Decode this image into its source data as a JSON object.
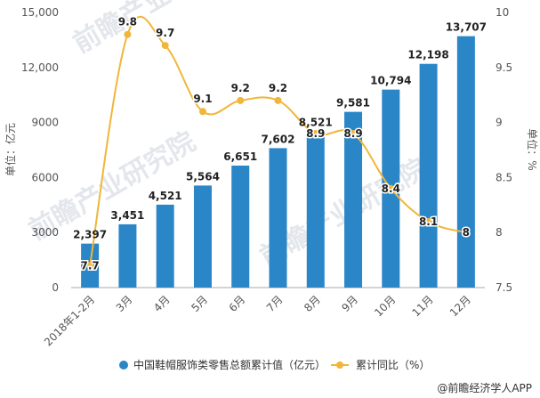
{
  "chart_data": {
    "type": "bar",
    "categories": [
      "2018年1-2月",
      "3月",
      "4月",
      "5月",
      "6月",
      "7月",
      "8月",
      "9月",
      "10月",
      "11月",
      "12月"
    ],
    "series": [
      {
        "name": "中国鞋帽服饰类零售总额累计值（亿元）",
        "type": "bar",
        "axis": "left",
        "color": "#2a86c7",
        "values": [
          2397,
          3451,
          4521,
          5564,
          6651,
          7602,
          8521,
          9581,
          10794,
          12198,
          13707
        ],
        "labels": [
          "2,397",
          "3,451",
          "4,521",
          "5,564",
          "6,651",
          "7,602",
          "8,521",
          "9,581",
          "10,794",
          "12,198",
          "13,707"
        ]
      },
      {
        "name": "累计同比（%）",
        "type": "line",
        "axis": "right",
        "color": "#f0b63a",
        "values": [
          7.7,
          9.8,
          9.7,
          9.1,
          9.2,
          9.2,
          8.9,
          8.9,
          8.4,
          8.1,
          8.0
        ],
        "labels": [
          "7.7",
          "9.8",
          "9.7",
          "9.1",
          "9.2",
          "9.2",
          "8.9",
          "8.9",
          "8.4",
          "8.1",
          "8"
        ]
      }
    ],
    "y_left": {
      "label": "单位：亿元",
      "range": [
        0,
        15000
      ],
      "ticks": [
        0,
        3000,
        6000,
        9000,
        12000,
        15000
      ],
      "tick_labels": [
        "0",
        "3000",
        "6000",
        "9000",
        "12,000",
        "15,000"
      ]
    },
    "y_right": {
      "label": "单位：%",
      "range": [
        7.5,
        10
      ],
      "ticks": [
        7.5,
        8,
        8.5,
        9,
        9.5,
        10
      ],
      "tick_labels": [
        "7.5",
        "8",
        "8.5",
        "9",
        "9.5",
        "10"
      ]
    },
    "grid": false,
    "legend_position": "bottom"
  },
  "source": "@前瞻经济学人APP",
  "watermark": "前瞻产业研究院"
}
